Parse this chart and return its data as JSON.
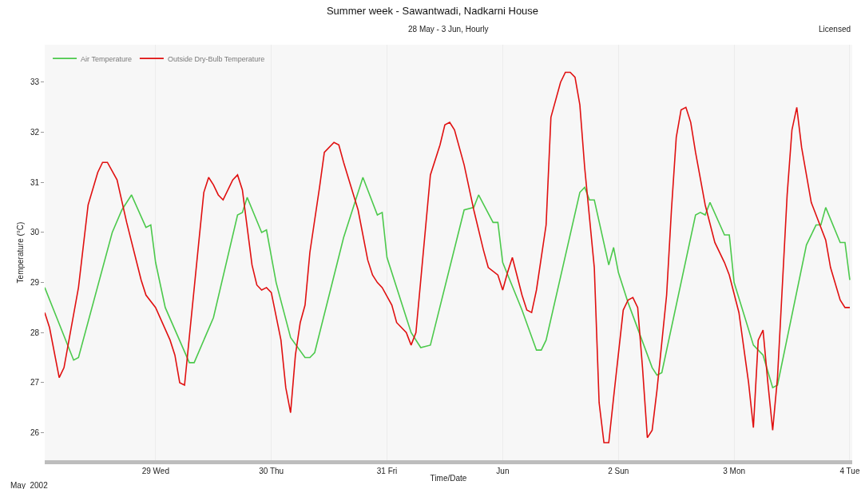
{
  "chart_data": {
    "type": "line",
    "title": "Summer week - Sawantwadi, Nadkarni House",
    "subtitle": "28 May - 3 Jun, Hourly",
    "xlabel": "Time/Date",
    "ylabel": "Temperature (°C)",
    "annotations": [
      "May  2002",
      "Licensed"
    ],
    "xlim": [
      "2002-05-28T01:00",
      "2002-06-04T00:30"
    ],
    "xticks": [
      {
        "value": "2002-05-29T00:00",
        "label": "29 Wed"
      },
      {
        "value": "2002-05-30T00:00",
        "label": "30 Thu"
      },
      {
        "value": "2002-05-31T00:00",
        "label": "31 Fri"
      },
      {
        "value": "2002-06-01T00:00",
        "label": "Jun"
      },
      {
        "value": "2002-06-02T00:00",
        "label": "2 Sun"
      },
      {
        "value": "2002-06-03T00:00",
        "label": "3 Mon"
      },
      {
        "value": "2002-06-04T00:00",
        "label": "4 Tue"
      }
    ],
    "ylim": [
      25.45,
      33.75
    ],
    "yticks": [
      26,
      27,
      28,
      29,
      30,
      31,
      32,
      33
    ],
    "grid": "x",
    "legend": "top left",
    "marker": "none",
    "line_style": "solid",
    "series": [
      {
        "name": "Air Temperature",
        "color": "#4cc94c",
        "x": [
          "2002-05-28T01:00",
          "2002-05-28T07:00",
          "2002-05-28T08:00",
          "2002-05-28T15:00",
          "2002-05-28T17:00",
          "2002-05-28T19:00",
          "2002-05-28T22:00",
          "2002-05-28T23:00",
          "2002-05-29T00:00",
          "2002-05-29T02:00",
          "2002-05-29T07:00",
          "2002-05-29T08:00",
          "2002-05-29T12:00",
          "2002-05-29T17:00",
          "2002-05-29T18:00",
          "2002-05-29T19:00",
          "2002-05-29T22:00",
          "2002-05-29T23:00",
          "2002-05-30T01:00",
          "2002-05-30T04:00",
          "2002-05-30T07:00",
          "2002-05-30T08:00",
          "2002-05-30T09:00",
          "2002-05-30T15:00",
          "2002-05-30T18:00",
          "2002-05-30T19:00",
          "2002-05-30T22:00",
          "2002-05-30T23:00",
          "2002-05-31T00:00",
          "2002-05-31T05:00",
          "2002-05-31T07:00",
          "2002-05-31T09:00",
          "2002-05-31T16:00",
          "2002-05-31T18:00",
          "2002-05-31T19:00",
          "2002-05-31T22:00",
          "2002-05-31T23:00",
          "2002-06-01T00:00",
          "2002-06-01T04:00",
          "2002-06-01T07:00",
          "2002-06-01T08:00",
          "2002-06-01T09:00",
          "2002-06-01T16:00",
          "2002-06-01T17:00",
          "2002-06-01T18:00",
          "2002-06-01T19:00",
          "2002-06-01T22:00",
          "2002-06-01T23:00",
          "2002-06-02T00:00",
          "2002-06-02T02:00",
          "2002-06-02T07:00",
          "2002-06-02T08:00",
          "2002-06-02T09:00",
          "2002-06-02T16:00",
          "2002-06-02T17:00",
          "2002-06-02T18:00",
          "2002-06-02T19:00",
          "2002-06-02T22:00",
          "2002-06-02T23:00",
          "2002-06-03T00:00",
          "2002-06-03T04:00",
          "2002-06-03T06:00",
          "2002-06-03T08:00",
          "2002-06-03T09:00",
          "2002-06-03T15:00",
          "2002-06-03T17:00",
          "2002-06-03T18:00",
          "2002-06-03T19:00",
          "2002-06-03T22:00",
          "2002-06-03T23:00",
          "2002-06-04T00:00"
        ],
        "values": [
          28.9,
          27.45,
          27.5,
          30.0,
          30.45,
          30.75,
          30.1,
          30.15,
          29.4,
          28.5,
          27.4,
          27.4,
          28.3,
          30.35,
          30.4,
          30.7,
          30.0,
          30.05,
          29.0,
          27.9,
          27.5,
          27.5,
          27.6,
          29.9,
          30.8,
          31.1,
          30.35,
          30.4,
          29.5,
          28.0,
          27.7,
          27.75,
          30.45,
          30.5,
          30.75,
          30.2,
          30.2,
          29.4,
          28.45,
          27.65,
          27.65,
          27.85,
          30.8,
          30.9,
          30.65,
          30.65,
          29.35,
          29.7,
          29.2,
          28.6,
          27.3,
          27.15,
          27.2,
          30.35,
          30.4,
          30.35,
          30.6,
          29.95,
          29.95,
          29.0,
          27.75,
          27.55,
          26.9,
          26.95,
          29.75,
          30.15,
          30.15,
          30.5,
          29.8,
          29.8,
          29.05
        ]
      },
      {
        "name": "Outside Dry-Bulb Temperature",
        "color": "#e01010",
        "x": [
          "2002-05-28T01:00",
          "2002-05-28T02:00",
          "2002-05-28T04:00",
          "2002-05-28T05:00",
          "2002-05-28T08:00",
          "2002-05-28T10:00",
          "2002-05-28T12:00",
          "2002-05-28T13:00",
          "2002-05-28T14:00",
          "2002-05-28T16:00",
          "2002-05-28T18:00",
          "2002-05-28T21:00",
          "2002-05-28T22:00",
          "2002-05-29T00:00",
          "2002-05-29T03:00",
          "2002-05-29T04:00",
          "2002-05-29T05:00",
          "2002-05-29T06:00",
          "2002-05-29T09:00",
          "2002-05-29T10:00",
          "2002-05-29T11:00",
          "2002-05-29T12:00",
          "2002-05-29T13:00",
          "2002-05-29T14:00",
          "2002-05-29T16:00",
          "2002-05-29T17:00",
          "2002-05-29T18:00",
          "2002-05-29T20:00",
          "2002-05-29T21:00",
          "2002-05-29T22:00",
          "2002-05-29T23:00",
          "2002-05-30T00:00",
          "2002-05-30T02:00",
          "2002-05-30T03:00",
          "2002-05-30T04:00",
          "2002-05-30T05:00",
          "2002-05-30T06:00",
          "2002-05-30T07:00",
          "2002-05-30T08:00",
          "2002-05-30T10:00",
          "2002-05-30T11:00",
          "2002-05-30T13:00",
          "2002-05-30T14:00",
          "2002-05-30T15:00",
          "2002-05-30T18:00",
          "2002-05-30T20:00",
          "2002-05-30T21:00",
          "2002-05-30T22:00",
          "2002-05-30T23:00",
          "2002-05-31T01:00",
          "2002-05-31T02:00",
          "2002-05-31T04:00",
          "2002-05-31T05:00",
          "2002-05-31T06:00",
          "2002-05-31T09:00",
          "2002-05-31T11:00",
          "2002-05-31T12:00",
          "2002-05-31T13:00",
          "2002-05-31T14:00",
          "2002-05-31T16:00",
          "2002-05-31T18:00",
          "2002-05-31T20:00",
          "2002-05-31T21:00",
          "2002-05-31T23:00",
          "2002-06-01T00:00",
          "2002-06-01T01:00",
          "2002-06-01T02:00",
          "2002-06-01T04:00",
          "2002-06-01T05:00",
          "2002-06-01T06:00",
          "2002-06-01T07:00",
          "2002-06-01T09:00",
          "2002-06-01T10:00",
          "2002-06-01T12:00",
          "2002-06-01T13:00",
          "2002-06-01T14:00",
          "2002-06-01T15:00",
          "2002-06-01T16:00",
          "2002-06-01T17:00",
          "2002-06-01T19:00",
          "2002-06-01T20:00",
          "2002-06-01T21:00",
          "2002-06-01T22:00",
          "2002-06-01T23:00",
          "2002-06-02T01:00",
          "2002-06-02T02:00",
          "2002-06-02T03:00",
          "2002-06-02T04:00",
          "2002-06-02T05:00",
          "2002-06-02T06:00",
          "2002-06-02T07:00",
          "2002-06-02T08:00",
          "2002-06-02T10:00",
          "2002-06-02T11:00",
          "2002-06-02T12:00",
          "2002-06-02T13:00",
          "2002-06-02T14:00",
          "2002-06-02T15:00",
          "2002-06-02T16:00",
          "2002-06-02T18:00",
          "2002-06-02T20:00",
          "2002-06-02T22:00",
          "2002-06-02T23:00",
          "2002-06-03T01:00",
          "2002-06-03T03:00",
          "2002-06-03T04:00",
          "2002-06-03T05:00",
          "2002-06-03T06:00",
          "2002-06-03T07:00",
          "2002-06-03T08:00",
          "2002-06-03T09:00",
          "2002-06-03T11:00",
          "2002-06-03T12:00",
          "2002-06-03T13:00",
          "2002-06-03T14:00",
          "2002-06-03T16:00",
          "2002-06-03T19:00",
          "2002-06-03T20:00",
          "2002-06-03T22:00",
          "2002-06-03T23:00",
          "2002-06-04T00:00"
        ],
        "values": [
          28.4,
          28.1,
          27.1,
          27.3,
          28.9,
          30.55,
          31.2,
          31.4,
          31.4,
          31.05,
          30.2,
          29.05,
          28.75,
          28.5,
          27.85,
          27.55,
          27.0,
          26.95,
          29.85,
          30.8,
          31.1,
          30.95,
          30.75,
          30.65,
          31.05,
          31.15,
          30.85,
          29.35,
          28.95,
          28.85,
          28.9,
          28.8,
          27.85,
          26.9,
          26.4,
          27.55,
          28.2,
          28.55,
          29.6,
          30.9,
          31.6,
          31.8,
          31.75,
          31.4,
          30.45,
          29.45,
          29.15,
          29.0,
          28.9,
          28.55,
          28.2,
          28.0,
          27.75,
          28.0,
          31.15,
          31.75,
          32.15,
          32.2,
          32.05,
          31.35,
          30.45,
          29.65,
          29.3,
          29.15,
          28.85,
          29.2,
          29.5,
          28.75,
          28.45,
          28.4,
          28.85,
          30.15,
          32.3,
          33.0,
          33.2,
          33.2,
          33.1,
          32.55,
          31.3,
          29.3,
          26.6,
          25.8,
          25.8,
          26.7,
          28.45,
          28.65,
          28.7,
          28.5,
          27.3,
          25.9,
          26.05,
          26.85,
          28.75,
          30.45,
          31.9,
          32.45,
          32.5,
          32.2,
          31.6,
          30.55,
          29.8,
          29.4,
          29.15,
          28.4,
          27.0,
          26.1,
          27.85,
          28.05,
          27.0,
          26.05,
          27.1,
          30.75,
          32.05,
          32.5,
          31.7,
          30.6,
          29.85,
          29.3,
          28.65,
          28.5,
          28.5
        ]
      }
    ]
  }
}
